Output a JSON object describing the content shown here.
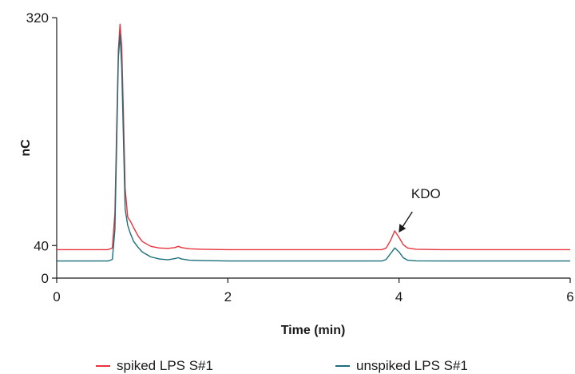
{
  "chart_data": {
    "type": "line",
    "title": "",
    "xlabel": "Time (min)",
    "ylabel": "nC",
    "xlim": [
      0,
      6
    ],
    "ylim": [
      0,
      330
    ],
    "xticks": [
      "0",
      "2",
      "4",
      "6"
    ],
    "yticks": [
      "0",
      "40",
      "320"
    ],
    "grid": false,
    "legend_position": "bottom",
    "annotations": [
      {
        "text": "KDO",
        "x": 3.95,
        "y": 58,
        "arrow": true
      }
    ],
    "series": [
      {
        "name": "spiked LPS S#1",
        "color": "#e8323c",
        "x": [
          0,
          0.6,
          0.65,
          0.68,
          0.7,
          0.72,
          0.74,
          0.76,
          0.78,
          0.8,
          0.83,
          0.86,
          0.9,
          0.95,
          1.0,
          1.1,
          1.2,
          1.3,
          1.38,
          1.42,
          1.46,
          1.55,
          1.7,
          2.0,
          2.5,
          3.0,
          3.5,
          3.8,
          3.85,
          3.9,
          3.95,
          4.0,
          4.05,
          4.1,
          4.2,
          4.5,
          5.0,
          5.5,
          6.0
        ],
        "values": [
          35,
          35,
          37,
          80,
          180,
          280,
          312,
          285,
          200,
          110,
          75,
          70,
          62,
          52,
          45,
          39,
          37,
          36.5,
          37.5,
          39,
          37.5,
          36,
          35.5,
          35,
          35,
          35,
          35,
          35,
          37,
          46,
          58,
          50,
          41,
          37,
          35.5,
          35,
          35,
          35,
          35
        ]
      },
      {
        "name": "unspiked LPS S#1",
        "color": "#1a6f7a",
        "x": [
          0,
          0.6,
          0.65,
          0.68,
          0.7,
          0.72,
          0.74,
          0.76,
          0.78,
          0.8,
          0.83,
          0.86,
          0.9,
          0.95,
          1.0,
          1.1,
          1.2,
          1.3,
          1.38,
          1.42,
          1.46,
          1.55,
          1.7,
          2.0,
          2.5,
          3.0,
          3.5,
          3.8,
          3.85,
          3.9,
          3.95,
          4.0,
          4.05,
          4.1,
          4.2,
          4.5,
          5.0,
          5.5,
          6.0
        ],
        "values": [
          21,
          21,
          23,
          60,
          160,
          270,
          300,
          260,
          170,
          85,
          65,
          55,
          45,
          38,
          32,
          26,
          23.5,
          22.5,
          24,
          25,
          23.5,
          22,
          21.5,
          21,
          21,
          21,
          21,
          21,
          23,
          30,
          37,
          32,
          25,
          22,
          21.2,
          21,
          21,
          21,
          21
        ]
      }
    ]
  }
}
